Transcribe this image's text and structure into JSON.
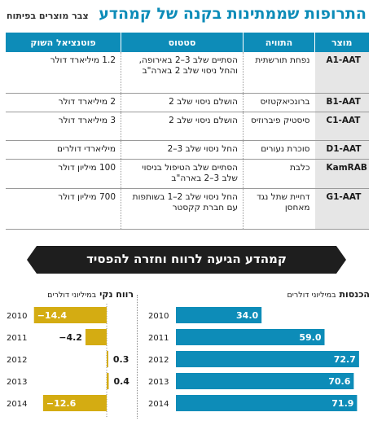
{
  "header": {
    "title": "התרופות שממתינות בקנה של קמהדע",
    "subtitle": "צבר מוצרים בפיתוח"
  },
  "table": {
    "columns": [
      "מוצר",
      "התוויה",
      "סטטוס",
      "פוטנציאל השוק"
    ],
    "rows": [
      {
        "product": "A1-AAT",
        "indication": "נפחת תורשתית",
        "status": "הסתיים שלב 3–2 באירופה, והחל ניסוי שלב 2 בארה\"ב",
        "market": "1.2 מיליארד דולר"
      },
      {
        "product": "B1-AAT",
        "indication": "ברונכיאקטזיס",
        "status": "הושלם ניסוי שלב 2",
        "market": "2 מיליארד דולר"
      },
      {
        "product": "C1-AAT",
        "indication": "סיסטיק פיברוזיס",
        "status": "הושלם ניסוי שלב 2",
        "market": "3 מיליארד דולר"
      },
      {
        "product": "D1-AAT",
        "indication": "סוכרת נעורים",
        "status": "החל ניסוי שלב 3–2",
        "market": "מיליארדי דולרים"
      },
      {
        "product": "KamRAB",
        "indication": "כלבת",
        "status": "הסתיים שלב הטיפול בניסוי שלב 3–2 בארה\"ב",
        "market": "100 מיליון דולר"
      },
      {
        "product": "G1-AAT",
        "indication": "דחיית שתל נגד מאחסן",
        "status": "החל ניסוי שלב 2–1 בשותפות עם חברת קקסטר",
        "market": "700 מיליון דולר"
      }
    ]
  },
  "banner": {
    "text": "קמהדע הגיעה לרווח וחזרה להפסיד"
  },
  "colors": {
    "blue": "#0d8cb8",
    "gold": "#d4ac12",
    "dark": "#1e1e1e",
    "product_bg": "#e6e6e6"
  },
  "charts": {
    "revenue": {
      "title": "הכנסות",
      "unit": "במיליוני דולרים"
    },
    "profit": {
      "title": "רווח נקי",
      "unit": "במיליוני דולרים"
    }
  },
  "chart_data": [
    {
      "type": "bar",
      "title": "הכנסות במיליוני דולרים",
      "orientation": "horizontal",
      "categories": [
        "2010",
        "2011",
        "2012",
        "2013",
        "2014"
      ],
      "values": [
        34.0,
        59.0,
        72.7,
        70.6,
        71.9
      ],
      "labels": [
        "34.0",
        "59.0",
        "72.7",
        "70.6",
        "71.9"
      ],
      "color": "#0d8cb8",
      "xlim": [
        0,
        75
      ]
    },
    {
      "type": "bar",
      "title": "רווח נקי במיליוני דולרים",
      "orientation": "horizontal",
      "categories": [
        "2010",
        "2011",
        "2012",
        "2013",
        "2014"
      ],
      "values": [
        -14.4,
        -4.2,
        0.3,
        0.4,
        -12.6
      ],
      "labels": [
        "−14.4",
        "−4.2",
        "0.3",
        "0.4",
        "−12.6"
      ],
      "color": "#d4ac12",
      "xlim": [
        -15,
        2
      ]
    }
  ]
}
